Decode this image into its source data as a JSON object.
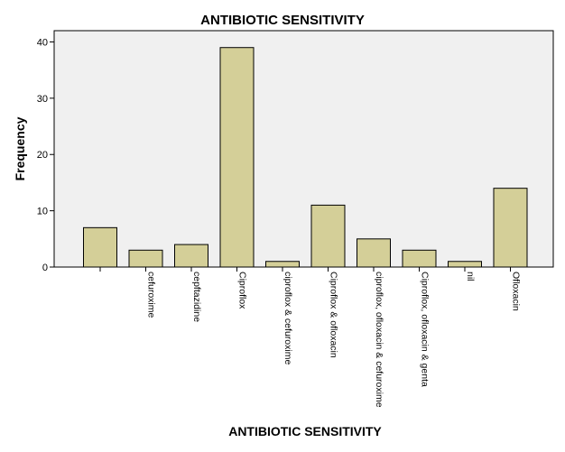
{
  "chart_data": {
    "type": "bar",
    "title": "ANTIBIOTIC SENSITIVITY",
    "xlabel": "ANTIBIOTIC SENSITIVITY",
    "ylabel": "Frequency",
    "ylim": [
      0,
      42
    ],
    "yticks": [
      0,
      10,
      20,
      30,
      40
    ],
    "categories": [
      "",
      "cefuroxime",
      "cepftazidine",
      "Ciproflox",
      "ciproflox & cefuroxime",
      "Ciproflox & ofloxacin",
      "ciproflox, ofloxacin & cefuroxime",
      "Ciproflox, ofloxacin & genta",
      "nil",
      "Ofloxacin"
    ],
    "values": [
      7,
      3,
      4,
      39,
      1,
      11,
      5,
      3,
      1,
      14
    ],
    "colors": {
      "bar_fill": "#d4cf98",
      "bar_stroke": "#000000",
      "plot_background": "#f0f0f0"
    },
    "grid": false
  }
}
